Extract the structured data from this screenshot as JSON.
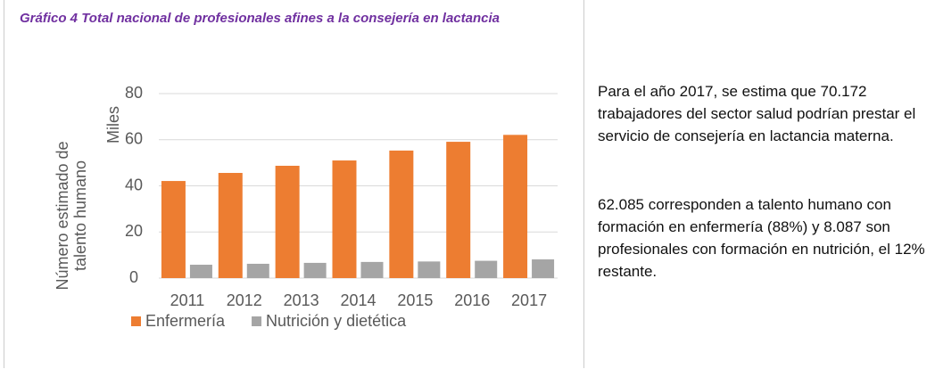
{
  "chart_data": {
    "type": "bar",
    "title": "Gráfico 4 Total nacional de profesionales afines a la consejería en lactancia",
    "y_label": "Número estimado de talento humano",
    "y_unit": "Miles",
    "categories": [
      "2011",
      "2012",
      "2013",
      "2014",
      "2015",
      "2016",
      "2017"
    ],
    "series": [
      {
        "name": "Enfermería",
        "color": "#ed7d31",
        "values": [
          42.1,
          45.6,
          48.7,
          51.0,
          55.3,
          59.1,
          62.1
        ]
      },
      {
        "name": "Nutrición y dietética",
        "color": "#a5a5a5",
        "values": [
          5.8,
          6.2,
          6.6,
          7.0,
          7.2,
          7.5,
          8.1
        ]
      }
    ],
    "ylim": [
      0,
      80
    ],
    "yticks": [
      0,
      20,
      40,
      60,
      80
    ],
    "grid": true
  },
  "text": [
    "Para el año 2017, se estima que 70.172 trabajadores del sector salud podrían prestar el servicio de consejería en lactancia materna.",
    "62.085 corresponden a talento humano con formación en enfermería (88%) y 8.087 son profesionales con formación en nutrición, el 12% restante."
  ]
}
